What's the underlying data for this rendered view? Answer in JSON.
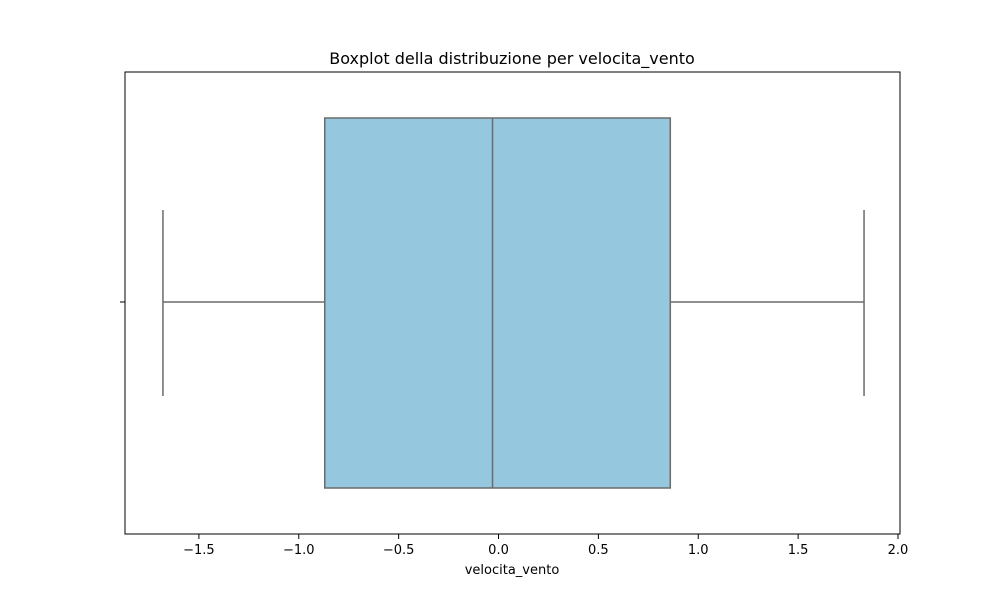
{
  "chart_data": {
    "type": "box",
    "title": "Boxplot della distribuzione per velocita_vento",
    "xlabel": "velocita_vento",
    "ylabel": "",
    "xlim": [
      -1.87,
      2.01
    ],
    "x_ticks": [
      -1.5,
      -1.0,
      -0.5,
      0.0,
      0.5,
      1.0,
      1.5,
      2.0
    ],
    "x_tick_labels": [
      "−1.5",
      "−1.0",
      "−0.5",
      "0.0",
      "0.5",
      "1.0",
      "1.5",
      "2.0"
    ],
    "orientation": "horizontal",
    "grid": false,
    "box": {
      "whisker_low": -1.68,
      "q1": -0.87,
      "median": -0.03,
      "q3": 0.86,
      "whisker_high": 1.83
    },
    "colors": {
      "box_fill": "#95c8de",
      "box_edge": "#6b6b6b",
      "axes": "#000000"
    }
  }
}
